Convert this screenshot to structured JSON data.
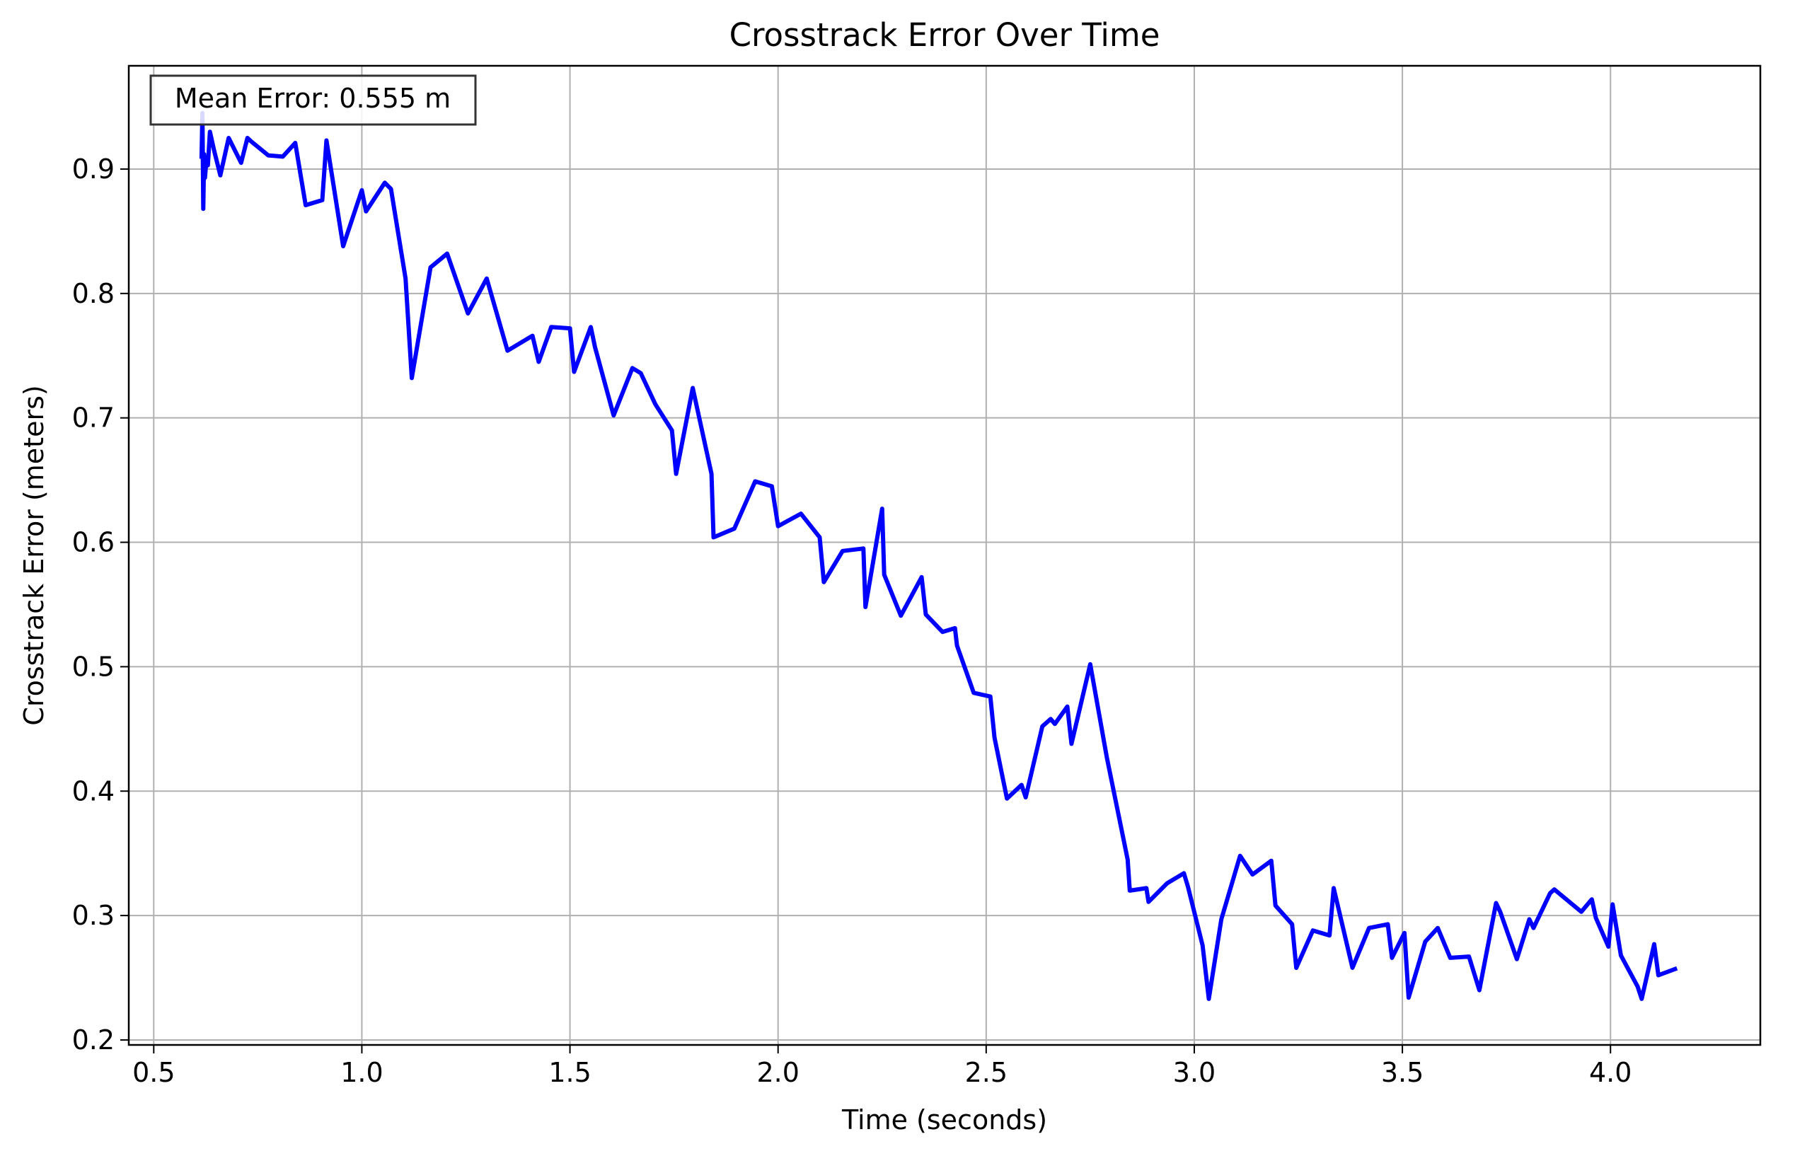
{
  "chart_data": {
    "type": "line",
    "title": "Crosstrack Error Over Time",
    "xlabel": "Time (seconds)",
    "ylabel": "Crosstrack Error (meters)",
    "xlim": [
      0.44,
      4.36
    ],
    "ylim": [
      0.196,
      0.983
    ],
    "xticks": [
      0.5,
      1.0,
      1.5,
      2.0,
      2.5,
      3.0,
      3.5,
      4.0
    ],
    "xtick_labels": [
      "0.5",
      "1.0",
      "1.5",
      "2.0",
      "2.5",
      "3.0",
      "3.5",
      "4.0"
    ],
    "yticks": [
      0.2,
      0.3,
      0.4,
      0.5,
      0.6,
      0.7,
      0.8,
      0.9
    ],
    "ytick_labels": [
      "0.2",
      "0.3",
      "0.4",
      "0.5",
      "0.6",
      "0.7",
      "0.8",
      "0.9"
    ],
    "grid": true,
    "annotation": "Mean Error: 0.555 m",
    "annotation_position": "top-left",
    "line_color": "#0000ff",
    "series": [
      {
        "x": [
          0.615,
          0.617,
          0.619,
          0.621,
          0.623,
          0.626,
          0.63,
          0.635,
          0.645,
          0.66,
          0.68,
          0.71,
          0.725,
          0.735,
          0.775,
          0.81,
          0.84,
          0.865,
          0.905,
          0.915,
          0.955,
          1.0,
          1.01,
          1.055,
          1.07,
          1.105,
          1.12,
          1.165,
          1.205,
          1.255,
          1.3,
          1.35,
          1.41,
          1.425,
          1.455,
          1.5,
          1.51,
          1.55,
          1.56,
          1.605,
          1.65,
          1.67,
          1.705,
          1.745,
          1.755,
          1.795,
          1.84,
          1.845,
          1.895,
          1.945,
          1.985,
          2.0,
          2.055,
          2.1,
          2.11,
          2.155,
          2.205,
          2.21,
          2.25,
          2.255,
          2.295,
          2.345,
          2.355,
          2.395,
          2.425,
          2.43,
          2.47,
          2.51,
          2.52,
          2.55,
          2.585,
          2.595,
          2.635,
          2.655,
          2.665,
          2.695,
          2.705,
          2.75,
          2.79,
          2.84,
          2.845,
          2.885,
          2.89,
          2.935,
          2.975,
          2.985,
          3.02,
          3.035,
          3.065,
          3.11,
          3.14,
          3.185,
          3.195,
          3.235,
          3.245,
          3.285,
          3.325,
          3.335,
          3.38,
          3.42,
          3.465,
          3.475,
          3.505,
          3.515,
          3.555,
          3.585,
          3.615,
          3.66,
          3.685,
          3.725,
          3.735,
          3.775,
          3.805,
          3.815,
          3.855,
          3.865,
          3.93,
          3.955,
          3.965,
          3.995,
          4.005,
          4.025,
          4.065,
          4.075,
          4.105,
          4.115,
          4.155
        ],
        "y": [
          0.91,
          0.945,
          0.868,
          0.912,
          0.893,
          0.905,
          0.903,
          0.93,
          0.915,
          0.895,
          0.925,
          0.905,
          0.925,
          0.922,
          0.911,
          0.91,
          0.921,
          0.871,
          0.875,
          0.923,
          0.838,
          0.883,
          0.866,
          0.889,
          0.884,
          0.812,
          0.732,
          0.821,
          0.832,
          0.784,
          0.812,
          0.754,
          0.766,
          0.745,
          0.773,
          0.772,
          0.737,
          0.773,
          0.757,
          0.702,
          0.74,
          0.736,
          0.711,
          0.69,
          0.655,
          0.724,
          0.655,
          0.604,
          0.611,
          0.649,
          0.645,
          0.613,
          0.623,
          0.604,
          0.568,
          0.593,
          0.595,
          0.548,
          0.627,
          0.574,
          0.541,
          0.572,
          0.542,
          0.528,
          0.531,
          0.517,
          0.479,
          0.476,
          0.443,
          0.394,
          0.405,
          0.395,
          0.452,
          0.458,
          0.454,
          0.468,
          0.438,
          0.502,
          0.427,
          0.345,
          0.32,
          0.322,
          0.311,
          0.326,
          0.334,
          0.323,
          0.276,
          0.233,
          0.297,
          0.348,
          0.333,
          0.344,
          0.308,
          0.293,
          0.258,
          0.288,
          0.284,
          0.322,
          0.258,
          0.29,
          0.293,
          0.266,
          0.286,
          0.234,
          0.279,
          0.29,
          0.266,
          0.267,
          0.24,
          0.31,
          0.303,
          0.265,
          0.297,
          0.29,
          0.318,
          0.321,
          0.303,
          0.313,
          0.298,
          0.275,
          0.309,
          0.268,
          0.243,
          0.233,
          0.277,
          0.252,
          0.257
        ]
      }
    ]
  }
}
